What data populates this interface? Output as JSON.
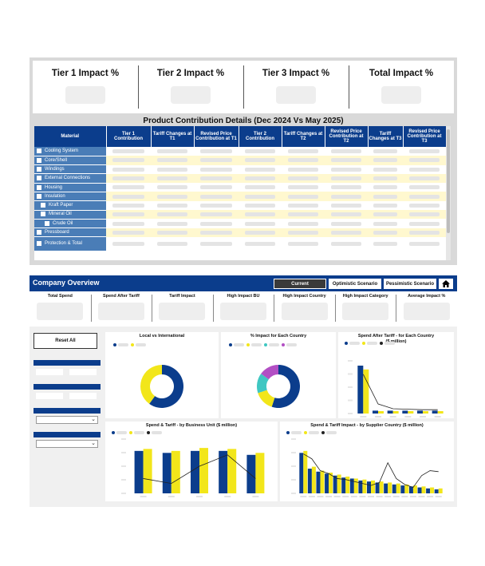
{
  "tiers": [
    {
      "label": "Tier 1 Impact %"
    },
    {
      "label": "Tier 2 Impact %"
    },
    {
      "label": "Tier 3 Impact %"
    },
    {
      "label": "Total Impact %"
    }
  ],
  "product_details": {
    "title": "Product Contribution Details (Dec 2024 Vs May 2025)",
    "columns": [
      "Material",
      "Tier 1 Contribution",
      "Tariff Changes at T1",
      "Revised Price Contribution at T1",
      "Tier 2 Contribution",
      "Tariff Changes at T2",
      "Revised Price Contribution at T2",
      "Tariff Changes at T3",
      "Revised Price Contribution at T3"
    ],
    "rows": [
      {
        "label": "Cooling System",
        "indent": 0
      },
      {
        "label": "Core/Shell",
        "indent": 0
      },
      {
        "label": "Windings",
        "indent": 0
      },
      {
        "label": "External Connections",
        "indent": 0
      },
      {
        "label": "Housing",
        "indent": 0
      },
      {
        "label": "Insulation",
        "indent": 0
      },
      {
        "label": "Kraft Paper",
        "indent": 1
      },
      {
        "label": "Mineral Oil",
        "indent": 1
      },
      {
        "label": "Crude Oil",
        "indent": 2
      },
      {
        "label": "Pressboard",
        "indent": 0
      },
      {
        "label": "Protection & Total",
        "indent": 0
      }
    ]
  },
  "company_overview": {
    "title": "Company Overview",
    "scenarios": {
      "current": "Current",
      "optimistic": "Optimistic Scenario",
      "pessimistic": "Pessimistic Scenario"
    },
    "kpis": [
      "Total Spend",
      "Spend After Tariff",
      "Tariff Impact",
      "High Impact BU",
      "High Impact Country",
      "High Impact Category",
      "Average Impact %"
    ],
    "reset_label": "Reset All"
  },
  "chart_data": [
    {
      "type": "pie",
      "title": "Local vs International",
      "slices": [
        {
          "value": 60,
          "color": "#0b3d8c"
        },
        {
          "value": 40,
          "color": "#f2e61a"
        }
      ]
    },
    {
      "type": "pie",
      "title": "% Impact for Each Country",
      "slices": [
        {
          "value": 55,
          "color": "#0b3d8c"
        },
        {
          "value": 15,
          "color": "#f2e61a"
        },
        {
          "value": 15,
          "color": "#3fc7c2"
        },
        {
          "value": 15,
          "color": "#b24fc4"
        }
      ]
    },
    {
      "type": "bar",
      "title": "Spend After Tariff - for Each Country ($ million)",
      "categories": [
        "1",
        "2",
        "3",
        "4",
        "5",
        "6"
      ],
      "series": [
        {
          "values": [
            100,
            6,
            6,
            6,
            6,
            6
          ],
          "color": "#0b3d8c"
        },
        {
          "values": [
            92,
            5,
            5,
            5,
            5,
            5
          ],
          "color": "#f2e61a"
        }
      ],
      "line": [
        82,
        20,
        10,
        9,
        8,
        8
      ],
      "ylim": [
        0,
        110
      ]
    },
    {
      "type": "bar",
      "title": "Spend & Tariff - by Business Unit ($ million)",
      "categories": [
        "1",
        "2",
        "3",
        "4",
        "5"
      ],
      "series": [
        {
          "values": [
            86,
            82,
            86,
            86,
            78
          ],
          "color": "#0b3d8c"
        },
        {
          "values": [
            90,
            86,
            92,
            90,
            82
          ],
          "color": "#f2e61a"
        }
      ],
      "line": [
        30,
        20,
        55,
        78,
        30
      ],
      "ylim": [
        0,
        110
      ]
    },
    {
      "type": "bar",
      "title": "Spend & Tariff Impact - by Supplier Country ($ million)",
      "categories": [
        "1",
        "2",
        "3",
        "4",
        "5",
        "6",
        "7",
        "8",
        "9",
        "10",
        "11",
        "12",
        "13",
        "14",
        "15",
        "16",
        "17"
      ],
      "series": [
        {
          "values": [
            82,
            50,
            44,
            40,
            36,
            32,
            30,
            26,
            24,
            22,
            20,
            18,
            16,
            14,
            12,
            10,
            8
          ],
          "color": "#0b3d8c"
        },
        {
          "values": [
            86,
            54,
            46,
            42,
            38,
            34,
            30,
            28,
            26,
            24,
            22,
            20,
            18,
            16,
            14,
            12,
            10
          ],
          "color": "#f2e61a"
        }
      ],
      "line": [
        80,
        70,
        46,
        40,
        30,
        28,
        24,
        20,
        16,
        22,
        62,
        30,
        18,
        12,
        36,
        46,
        44
      ],
      "ylim": [
        0,
        110
      ]
    }
  ]
}
